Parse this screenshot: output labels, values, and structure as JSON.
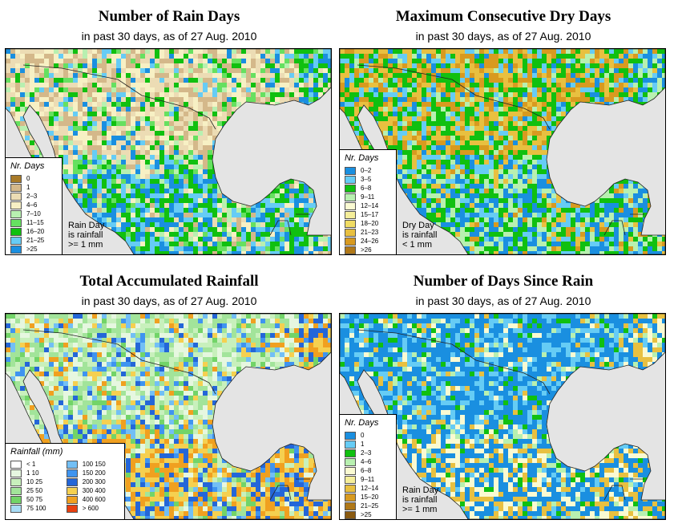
{
  "panels": [
    {
      "title": "Number of Rain Days",
      "subtitle": "in past 30 days, as of  27 Aug. 2010",
      "legend_title": "Nr. Days",
      "classes": [
        {
          "label": "0",
          "color": "#a87a28"
        },
        {
          "label": "1",
          "color": "#d4b88a"
        },
        {
          "label": "2–3",
          "color": "#ecdcb4"
        },
        {
          "label": "4–6",
          "color": "#f7f0c4"
        },
        {
          "label": "7–10",
          "color": "#b8f0b0"
        },
        {
          "label": "11–15",
          "color": "#66e060"
        },
        {
          "label": "16–20",
          "color": "#10c010"
        },
        {
          "label": "21–25",
          "color": "#66ccf5"
        },
        {
          "label": ">25",
          "color": "#1a8fe0"
        }
      ],
      "note": [
        "Rain Day",
        "is rainfall",
        ">= 1 mm"
      ]
    },
    {
      "title": "Maximum Consecutive Dry Days",
      "subtitle": "in past 30 days, as of  27 Aug. 2010",
      "legend_title": "Nr. Days",
      "classes": [
        {
          "label": "0–2",
          "color": "#1a8fe0"
        },
        {
          "label": "3–5",
          "color": "#66ccf5"
        },
        {
          "label": "6–8",
          "color": "#10c010"
        },
        {
          "label": "9–11",
          "color": "#b8f0b0"
        },
        {
          "label": "12–14",
          "color": "#fafad2"
        },
        {
          "label": "15–17",
          "color": "#f5ee9a"
        },
        {
          "label": "18–20",
          "color": "#f0dc64"
        },
        {
          "label": "21–23",
          "color": "#e8c040"
        },
        {
          "label": "24–26",
          "color": "#d89a20"
        },
        {
          "label": ">26",
          "color": "#b07818"
        }
      ],
      "note": [
        "Dry Day",
        "is rainfall",
        "< 1 mm"
      ]
    },
    {
      "title": "Total Accumulated Rainfall",
      "subtitle": "in past 30 days, as of  27 Aug. 2010",
      "legend_title": "Rainfall (mm)",
      "classes": [
        {
          "label": "< 1",
          "color": "#ffffff"
        },
        {
          "label": "1   10",
          "color": "#e6f7e0"
        },
        {
          "label": "10   25",
          "color": "#c8f0bc"
        },
        {
          "label": "25   50",
          "color": "#a2e49a"
        },
        {
          "label": "50   75",
          "color": "#72d468"
        },
        {
          "label": "75   100",
          "color": "#a8dcf6"
        },
        {
          "label": "100   150",
          "color": "#72bff5"
        },
        {
          "label": "150   200",
          "color": "#3f94f0"
        },
        {
          "label": "200   300",
          "color": "#2466d8"
        },
        {
          "label": "300   400",
          "color": "#f5d050"
        },
        {
          "label": "400   600",
          "color": "#f0a020"
        },
        {
          "label": "> 600",
          "color": "#e84010"
        }
      ],
      "note": []
    },
    {
      "title": "Number of Days Since Rain",
      "subtitle": "in past 30 days, as of  27 Aug. 2010",
      "legend_title": "Nr. Days",
      "classes": [
        {
          "label": "0",
          "color": "#1a8fe0"
        },
        {
          "label": "1",
          "color": "#66ccf5"
        },
        {
          "label": "2–3",
          "color": "#10c010"
        },
        {
          "label": "4–6",
          "color": "#b8f0b0"
        },
        {
          "label": "6–8",
          "color": "#fafad2"
        },
        {
          "label": "9–11",
          "color": "#f5ee9a"
        },
        {
          "label": "12–14",
          "color": "#e8c040"
        },
        {
          "label": "15–20",
          "color": "#d89a20"
        },
        {
          "label": "21–25",
          "color": "#b07818"
        },
        {
          "label": ">25",
          "color": "#8a5a10"
        }
      ],
      "note": [
        "Rain Day",
        "is rainfall",
        ">= 1 mm"
      ]
    }
  ]
}
